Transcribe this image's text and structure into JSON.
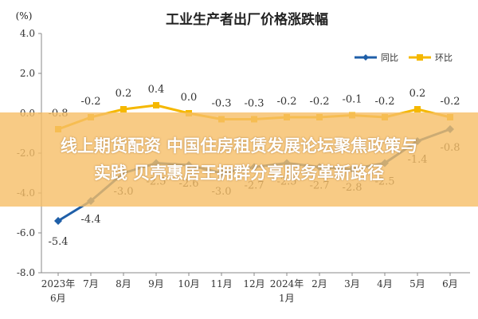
{
  "chart_data": {
    "type": "line",
    "title": "工业生产者出厂价格涨跌幅",
    "unit": "(%)",
    "categories": [
      [
        "2023年",
        "6月"
      ],
      [
        "7月"
      ],
      [
        "8月"
      ],
      [
        "9月"
      ],
      [
        "10月"
      ],
      [
        "11月"
      ],
      [
        "12月"
      ],
      [
        "2024年",
        "1月"
      ],
      [
        "2月"
      ],
      [
        "3月"
      ],
      [
        "4月"
      ],
      [
        "5月"
      ],
      [
        "6月"
      ]
    ],
    "ylim": [
      -8.0,
      4.0
    ],
    "yticks": [
      "4.0",
      "2.0",
      "0.0",
      "-2.0",
      "-4.0",
      "-6.0",
      "-8.0"
    ],
    "grid": false,
    "legend_position": "top-right",
    "series": [
      {
        "name": "同比",
        "color": "#1f5fa8",
        "values": [
          -5.4,
          -4.4,
          -3.0,
          -2.5,
          -2.6,
          -3.0,
          -2.7,
          -2.5,
          -2.7,
          -2.8,
          -2.5,
          -1.4,
          -0.8
        ],
        "labels": [
          "-5.4",
          "-4.4",
          "-3.0",
          "-2.5",
          "-2.6",
          "-3.0",
          "-2.7",
          "-2.5",
          "-2.7",
          "-2.8",
          "-2.5",
          "-1.4",
          "-0.8"
        ]
      },
      {
        "name": "环比",
        "color": "#f5b800",
        "values": [
          -0.8,
          -0.2,
          0.2,
          0.4,
          0.0,
          -0.3,
          -0.3,
          -0.2,
          -0.2,
          -0.1,
          -0.2,
          0.2,
          -0.2
        ],
        "labels": [
          "-0.8",
          "-0.2",
          "0.2",
          "0.4",
          "0.0",
          "-0.3",
          "-0.3",
          "-0.2",
          "-0.2",
          "-0.1",
          "-0.2",
          "0.2",
          "-0.2"
        ]
      }
    ]
  },
  "overlay": {
    "line1": "线上期货配资 中国住房租赁发展论坛聚焦政策与",
    "line2": "实践 贝壳惠居王拥群分享服务革新路径"
  }
}
